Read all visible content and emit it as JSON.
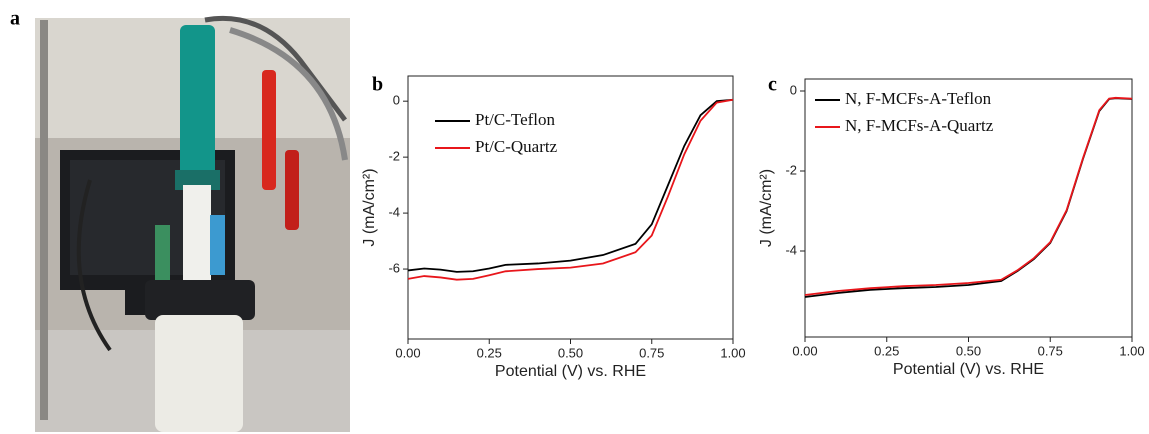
{
  "photo_label": "a",
  "chart_data": [
    {
      "type": "line",
      "panel_label": "b",
      "xlabel": "Potential (V) vs. RHE",
      "ylabel": "J (mA/cm²)",
      "x": [
        0,
        0.05,
        0.1,
        0.15,
        0.2,
        0.25,
        0.3,
        0.4,
        0.5,
        0.6,
        0.7,
        0.75,
        0.8,
        0.85,
        0.9,
        0.95,
        1.0
      ],
      "series": [
        {
          "name": "Pt/C-Teflon",
          "color": "#000000",
          "values": [
            -6.05,
            -5.98,
            -6.02,
            -6.1,
            -6.08,
            -5.98,
            -5.85,
            -5.8,
            -5.7,
            -5.5,
            -5.1,
            -4.4,
            -3.0,
            -1.6,
            -0.5,
            0.0,
            0.05
          ]
        },
        {
          "name": "Pt/C-Quartz",
          "color": "#e8161b",
          "values": [
            -6.35,
            -6.25,
            -6.3,
            -6.38,
            -6.35,
            -6.22,
            -6.08,
            -6.0,
            -5.95,
            -5.8,
            -5.4,
            -4.8,
            -3.4,
            -1.9,
            -0.7,
            -0.05,
            0.05
          ]
        }
      ],
      "xlim": [
        0,
        1
      ],
      "ylim": [
        -8.5,
        0.9
      ],
      "xticks": [
        {
          "value": 0,
          "label": "0.00"
        },
        {
          "value": 0.25,
          "label": "0.25"
        },
        {
          "value": 0.5,
          "label": "0.50"
        },
        {
          "value": 0.75,
          "label": "0.75"
        },
        {
          "value": 1,
          "label": "1.00"
        }
      ],
      "yticks": [
        0,
        -2,
        -4,
        -6
      ],
      "legend": "upper left"
    },
    {
      "type": "line",
      "panel_label": "c",
      "xlabel": "Potential (V) vs. RHE",
      "ylabel": "J (mA/cm²)",
      "x": [
        0,
        0.1,
        0.2,
        0.3,
        0.4,
        0.5,
        0.6,
        0.65,
        0.7,
        0.75,
        0.8,
        0.85,
        0.9,
        0.93,
        0.95,
        1.0
      ],
      "series": [
        {
          "name": "N, F-MCFs-A-Teflon",
          "color": "#000000",
          "values": [
            -5.15,
            -5.05,
            -4.97,
            -4.93,
            -4.9,
            -4.85,
            -4.75,
            -4.5,
            -4.2,
            -3.8,
            -3.0,
            -1.7,
            -0.5,
            -0.2,
            -0.18,
            -0.2
          ]
        },
        {
          "name": "N, F-MCFs-A-Quartz",
          "color": "#e8161b",
          "values": [
            -5.1,
            -5.0,
            -4.93,
            -4.88,
            -4.85,
            -4.8,
            -4.72,
            -4.48,
            -4.18,
            -3.78,
            -2.98,
            -1.68,
            -0.48,
            -0.19,
            -0.17,
            -0.19
          ]
        }
      ],
      "xlim": [
        0,
        1
      ],
      "ylim": [
        -6.15,
        0.3
      ],
      "xticks": [
        {
          "value": 0,
          "label": "0.00"
        },
        {
          "value": 0.25,
          "label": "0.25"
        },
        {
          "value": 0.5,
          "label": "0.50"
        },
        {
          "value": 0.75,
          "label": "0.75"
        },
        {
          "value": 1,
          "label": "1.00"
        }
      ],
      "yticks": [
        0,
        -2,
        -4
      ],
      "legend": "upper left"
    }
  ]
}
